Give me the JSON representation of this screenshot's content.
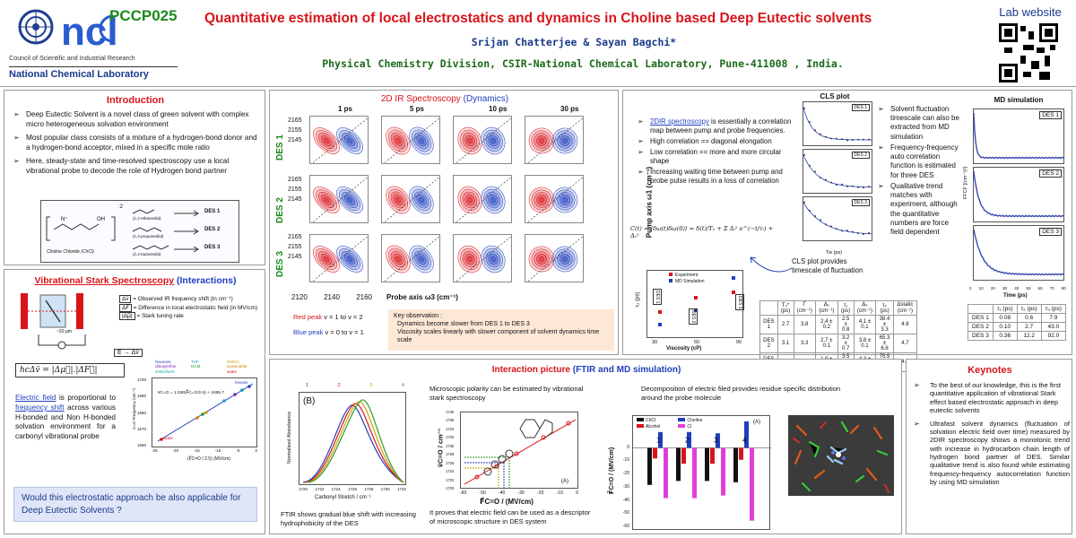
{
  "header": {
    "logo_org": "Council of Scientific and Industrial Research",
    "logo_lab": "National Chemical Laboratory",
    "code": "PCCP025",
    "title": "Quantitative estimation of local electrostatics and dynamics in Choline based Deep Eutectic solvents",
    "authors": "Srijan Chatterjee & Sayan Bagchi*",
    "affiliation": "Physical Chemistry Division, CSIR-National Chemical Laboratory, Pune-411008 , India.",
    "lab_website": "Lab website"
  },
  "intro": {
    "title": "Introduction",
    "bullets": [
      "Deep Eutectic Solvent is a novel class of green solvent with complex micro heterogeneous solvation environment",
      "Most popular class consists of a mixture of a hydrogen-bond donor and a hydrogen-bond acceptor, mixed in a specific mole ratio",
      "Here, steady-state and time-resolved spectroscopy use a local vibrational probe to decode the role of Hydrogen bond partner"
    ],
    "scheme": {
      "salt": "Choline Chloride (ChCl)",
      "ratio": ":2",
      "rows": [
        {
          "hbd": "(1,2-ethanediol)",
          "des": "DES 1"
        },
        {
          "hbd": "(1,3-propanediol)",
          "des": "DES 2"
        },
        {
          "hbd": "(1,4-butanediol)",
          "des": "DES 3"
        }
      ]
    }
  },
  "stark": {
    "title_a": "Vibrational Stark Spectroscopy",
    "title_b": "(Interactions)",
    "defs": [
      {
        "sym": "Δv̄",
        "text": "= Observed IR frequency shift (in cm⁻¹)"
      },
      {
        "sym": "ΔF⃗",
        "text": "= Difference in local electrostatic field (in MV/cm)"
      },
      {
        "sym": "|Δμ⃗|",
        "text": "= Stark tuning rate"
      }
    ],
    "apparatus_labels": {
      "field": "E → Δv̄",
      "thickness": "~20 μm"
    },
    "equation": "hcΔv̄ = |Δμ⃗|.|ΔF⃗|",
    "text_parts": [
      "Electric field",
      " is proportional to ",
      "frequency shift",
      " across various H-bonded and Non H-bonded solvation environment for a carbonyl vibrational probe"
    ],
    "question": "Would this electrostatic approach be also applicable for Deep Eutectic Solvents ?",
    "plot": {
      "legend": [
        "hexanes",
        "dibutylether",
        "chloroform",
        "THF",
        "DCM",
        "DMSO",
        "acetonitrile",
        "water"
      ],
      "fit": "v̄C=O = 1.036(F⃗C=O/2.5) + 1695.7",
      "ylabel": "C=O Frequency (cm⁻¹)",
      "xlabel": "(F⃗C=O / 2.5) (MV/cm)",
      "xticks": [
        "-25",
        "-20",
        "-15",
        "-10",
        "-5",
        "0"
      ],
      "yticks": [
        "1700",
        "1690",
        "1680",
        "1670",
        "1660"
      ],
      "hexane_label": "hexane",
      "water_label": "water"
    }
  },
  "ir2d": {
    "title_a": "2D IR Spectroscopy",
    "title_b": "(Dynamics)",
    "times": [
      "1 ps",
      "5 ps",
      "10 ps",
      "30 ps"
    ],
    "rows": [
      "DES 1",
      "DES 2",
      "DES 3"
    ],
    "yticks": [
      "2165",
      "2155",
      "2145"
    ],
    "xticks": [
      "2120",
      "2140",
      "2160"
    ],
    "xlabel": "Probe axis ω3 (cm⁻¹)",
    "ylabel": "Pump axis ω1 (cm⁻¹)",
    "red_peak": "Red peak",
    "red_peak_txt": " v = 1 to v = 2",
    "blue_peak": "Blue peak",
    "blue_peak_txt": " v = 0 to v = 1",
    "observation_title": "Key observation :",
    "observations": [
      "Dynamics become slower from DES 1 to DES 3",
      "Viscosity scales linearly with slower component of solvent dynamics time scale"
    ],
    "bullets_first_blue": "2DIR spectroscopy",
    "bullets_first_rest": " is essentially a correlation map between pump and probe frequencies.",
    "bullets": [
      "High correlation == diagonal elongation",
      "Low correlation == more and more circular shape",
      "Increasing waiting time between pump and probe pulse results in a loss of correlation"
    ],
    "equation": "C(t) = ⟨δω(t)δω(0)⟩ = δ(t)/T₂ + Σ Δᵢ² e^(−t/τᵢ) + Δₛ²"
  },
  "cls": {
    "title": "CLS plot",
    "panels": [
      "DES 1",
      "DES 2",
      "DES 3"
    ],
    "yticks": [
      "0.4",
      "0.3",
      "0.2",
      "0.1"
    ],
    "xticks": [
      "0",
      "20",
      "40",
      "60",
      "80"
    ],
    "xlabel": "Tw (ps)",
    "note": "CLS plot provides timescale of fluctuation",
    "table_head": [
      "",
      "T₂* (ps)",
      "Γ (cm⁻¹)",
      "Δ₁ (cm⁻¹)",
      "τ₁ (ps)",
      "Δ₂ (cm⁻¹)",
      "τ₂ (ps)",
      "Δstatic (cm⁻¹)"
    ],
    "table_rows": [
      [
        "DES 1",
        "2.7",
        "3.8",
        "2.4 ± 0.2",
        "2.5 ± 0.8",
        "4.1 ± 0.1",
        "38.4 ± 3.3",
        "4.8"
      ],
      [
        "DES 2",
        "3.1",
        "3.3",
        "2.7 ± 0.1",
        "3.2 ± 0.7",
        "3.8 ± 0.1",
        "65.3 ± 6.8",
        "4.7"
      ],
      [
        "DES 3",
        "3.2",
        "3.2",
        "1.9 ± 0.2",
        "3.5 ± 0.9",
        "4.3 ± 0.1",
        "75.5 ± 4.5",
        "4.7"
      ]
    ]
  },
  "viscosity": {
    "legend": [
      "Experiment",
      "MD Simulation"
    ],
    "ylabel": "τ₂ (ps)",
    "xlabel": "Viscosity (cP)",
    "xticks": [
      "30",
      "60",
      "90"
    ],
    "labels": [
      "DES 1",
      "DES 2",
      "DES 3"
    ]
  },
  "md": {
    "title": "MD simulation",
    "panels": [
      "DES 1",
      "DES 2",
      "DES 3"
    ],
    "ylabel": "FFCF [(cm⁻¹)²]",
    "xlabel": "Time (ps)",
    "xticks": [
      "0",
      "10",
      "20",
      "30",
      "40",
      "50",
      "60",
      "70",
      "80"
    ],
    "bullets": [
      "Solvent fluctuation timescale can also be extracted from MD simulation",
      "Frequency-frequency auto correlation function is estimated for three DES",
      "Qualitative trend matches with experiment, although the quantitative numbers are force field dependent"
    ],
    "table_head": [
      "",
      "τ₁ (ps)",
      "τ₂ (ps)",
      "τ₃ (ps)"
    ],
    "table_rows": [
      [
        "DES 1",
        "0.08",
        "0.6",
        "7.9"
      ],
      [
        "DES 2",
        "0.10",
        "2.7",
        "43.0"
      ],
      [
        "DES 3",
        "0.36",
        "12.2",
        "92.0"
      ]
    ]
  },
  "interaction": {
    "title_a": "Interaction picture",
    "title_b": "(FTIR and MD simulation)",
    "ftir": {
      "legend": [
        "1",
        "2",
        "3",
        "4"
      ],
      "panel": "(B)",
      "ylabel": "Normalised Absorbance",
      "xlabel": "Carbonyl Stretch / cm⁻¹",
      "xticks": [
        "1720",
        "1722",
        "1724",
        "1726",
        "1728",
        "1730",
        "1732"
      ],
      "caption": "FTIR shows gradual blue shift with increasing hydrophobicity of the DES"
    },
    "stark_fit": {
      "text": "Microscopic polarity can be estimated by vibrational stark spectroscopy",
      "ylabel": "v̄C=O / cm⁻¹",
      "xlabel": "F⃗C=O / (MV/cm)",
      "yticks": [
        "1740",
        "1736",
        "1734",
        "1732",
        "1730",
        "1728",
        "1726",
        "1724",
        "1722",
        "1720"
      ],
      "xticks": [
        "-60",
        "-50",
        "-40",
        "-30",
        "-20",
        "-10",
        "0"
      ],
      "panel": "(A)",
      "caption": "It proves that electric field can be used as a descriptor of microscopic structure in DES system"
    },
    "decomp": {
      "text": "Decomposition of electric filed provides residue specific distribution around the probe molecule",
      "legend": [
        "ChCl",
        "Alcohol",
        "Choline",
        "Cl"
      ],
      "panel": "(A)",
      "ylabel": "F⃗C=O / (MV/cm)",
      "yticks": [
        "0",
        "-10",
        "-20",
        "-30",
        "-40",
        "-50",
        "-60"
      ],
      "groups": [
        "1",
        "2",
        "3",
        "4"
      ]
    }
  },
  "chart_data": {
    "type": "bar",
    "title": "",
    "categories": [
      "1",
      "2",
      "3",
      "4"
    ],
    "series": [
      {
        "name": "ChCl",
        "values": [
          -28,
          -25,
          -25,
          -26
        ]
      },
      {
        "name": "Alcohol",
        "values": [
          -8,
          -12,
          -12,
          -9
        ]
      },
      {
        "name": "Choline",
        "values": [
          12,
          12,
          11,
          20
        ]
      },
      {
        "name": "Cl",
        "values": [
          -38,
          -38,
          -36,
          -55
        ]
      }
    ],
    "xlabel": "",
    "ylabel": "F⃗C=O / (MV/cm)",
    "ylim": [
      -60,
      20
    ]
  },
  "keynotes": {
    "title": "Keynotes",
    "bullets": [
      "To the best of our knowledge, this is the first quantitative application of vibrational Stark effect based electrostatic approach in deep eutectic solvents",
      "Ultrafast solvent dynamics (fluctuation of solvation electric field over time) measured by 2DIR spectroscopy shows a monotonic trend with increase in hydrocarbon chain length of hydrogen bond partner of DES. Similar qualitative trend is also found while estimating frequency-frequency autocorrelation function by using MD simulation"
    ]
  },
  "colors": {
    "title_red": "#d8141a",
    "accent_blue": "#1f3fbf",
    "code_green": "#1a8a1a",
    "header_bg": "#eef4ff",
    "note_bg": "#fde8d6",
    "question_bg": "#dfe6f7"
  }
}
